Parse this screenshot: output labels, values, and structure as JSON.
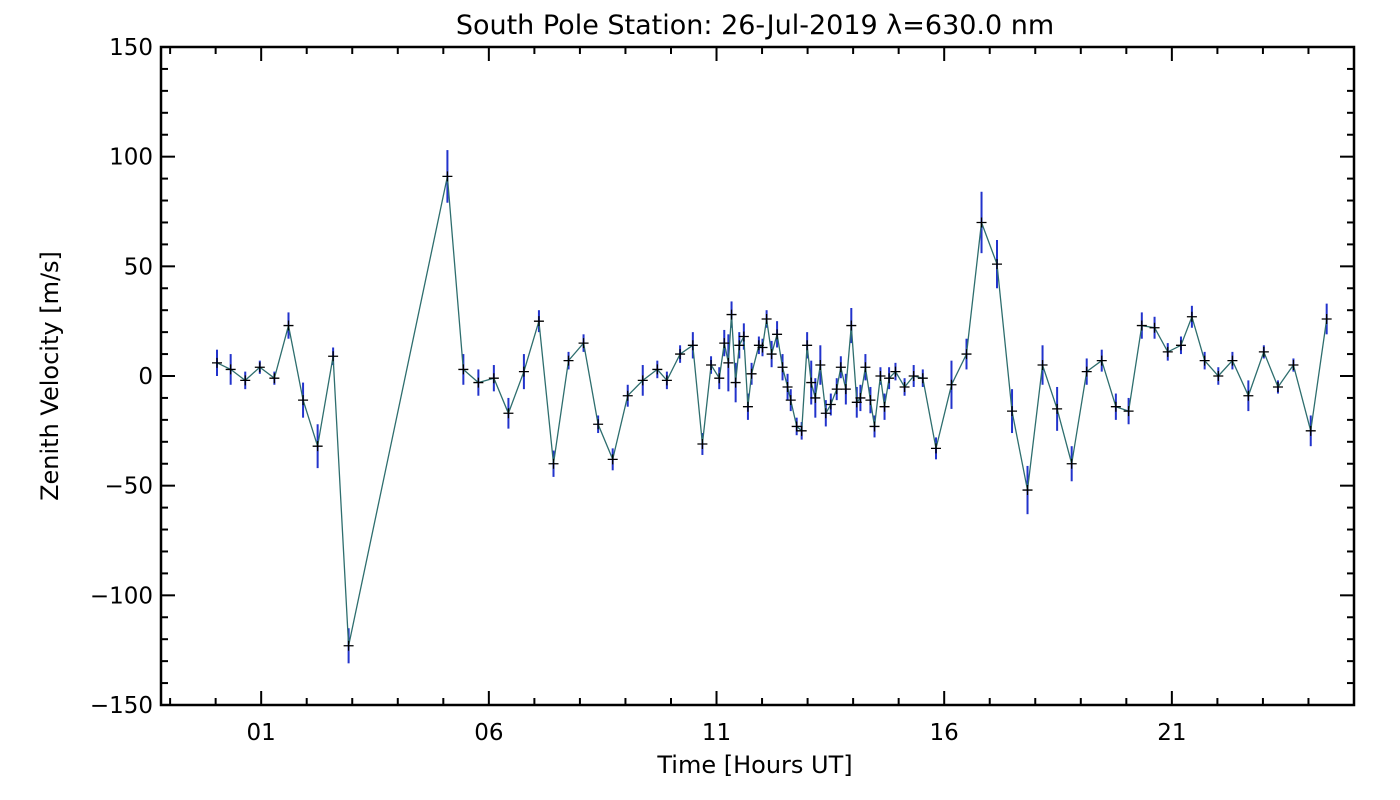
{
  "chart_data": {
    "type": "line",
    "title": "South Pole Station: 26-Jul-2019 λ=630.0 nm",
    "xlabel": "Time [Hours UT]",
    "ylabel": "Zenith Velocity [m/s]",
    "xlim": [
      -1.2,
      25.0
    ],
    "ylim": [
      -150,
      150
    ],
    "xticks": [
      {
        "value": 1,
        "label": "01"
      },
      {
        "value": 6,
        "label": "06"
      },
      {
        "value": 11,
        "label": "11"
      },
      {
        "value": 16,
        "label": "16"
      },
      {
        "value": 21,
        "label": "21"
      }
    ],
    "yticks": [
      {
        "value": -150,
        "label": "−150"
      },
      {
        "value": -100,
        "label": "−100"
      },
      {
        "value": -50,
        "label": "−50"
      },
      {
        "value": 0,
        "label": "0"
      },
      {
        "value": 50,
        "label": "50"
      },
      {
        "value": 100,
        "label": "100"
      },
      {
        "value": 150,
        "label": "150"
      }
    ],
    "grid": false,
    "colors": {
      "line": "#2e6e6e",
      "errorbar": "#2233cc",
      "marker": "#000000",
      "axis": "#000000"
    },
    "series": [
      {
        "name": "zenith velocity",
        "points": [
          {
            "x": 0.03,
            "y": 6,
            "err": 6
          },
          {
            "x": 0.33,
            "y": 3,
            "err": 7
          },
          {
            "x": 0.65,
            "y": -2,
            "err": 4
          },
          {
            "x": 0.97,
            "y": 4,
            "err": 3
          },
          {
            "x": 1.29,
            "y": -1,
            "err": 3
          },
          {
            "x": 1.6,
            "y": 23,
            "err": 6
          },
          {
            "x": 1.92,
            "y": -11,
            "err": 8
          },
          {
            "x": 2.24,
            "y": -32,
            "err": 10
          },
          {
            "x": 2.58,
            "y": 9,
            "err": 4
          },
          {
            "x": 2.92,
            "y": -123,
            "err": 8
          },
          {
            "x": 5.09,
            "y": 91,
            "err": 12
          },
          {
            "x": 5.44,
            "y": 3,
            "err": 7
          },
          {
            "x": 5.77,
            "y": -3,
            "err": 6
          },
          {
            "x": 6.11,
            "y": -1,
            "err": 6
          },
          {
            "x": 6.43,
            "y": -17,
            "err": 7
          },
          {
            "x": 6.77,
            "y": 2,
            "err": 8
          },
          {
            "x": 7.1,
            "y": 25,
            "err": 5
          },
          {
            "x": 7.42,
            "y": -40,
            "err": 6
          },
          {
            "x": 7.75,
            "y": 7,
            "err": 4
          },
          {
            "x": 8.08,
            "y": 15,
            "err": 4
          },
          {
            "x": 8.4,
            "y": -22,
            "err": 4
          },
          {
            "x": 8.72,
            "y": -38,
            "err": 5
          },
          {
            "x": 9.05,
            "y": -9,
            "err": 5
          },
          {
            "x": 9.38,
            "y": -2,
            "err": 7
          },
          {
            "x": 9.7,
            "y": 3,
            "err": 4
          },
          {
            "x": 9.91,
            "y": -2,
            "err": 4
          },
          {
            "x": 10.2,
            "y": 10,
            "err": 4
          },
          {
            "x": 10.48,
            "y": 14,
            "err": 6
          },
          {
            "x": 10.69,
            "y": -31,
            "err": 5
          },
          {
            "x": 10.88,
            "y": 5,
            "err": 4
          },
          {
            "x": 11.06,
            "y": -1,
            "err": 5
          },
          {
            "x": 11.17,
            "y": 15,
            "err": 6
          },
          {
            "x": 11.26,
            "y": 6,
            "err": 13
          },
          {
            "x": 11.33,
            "y": 28,
            "err": 6
          },
          {
            "x": 11.42,
            "y": -3,
            "err": 9
          },
          {
            "x": 11.5,
            "y": 14,
            "err": 6
          },
          {
            "x": 11.6,
            "y": 18,
            "err": 6
          },
          {
            "x": 11.69,
            "y": -14,
            "err": 6
          },
          {
            "x": 11.77,
            "y": 1,
            "err": 5
          },
          {
            "x": 11.93,
            "y": 14,
            "err": 4
          },
          {
            "x": 12.01,
            "y": 13,
            "err": 4
          },
          {
            "x": 12.1,
            "y": 26,
            "err": 4
          },
          {
            "x": 12.21,
            "y": 10,
            "err": 6
          },
          {
            "x": 12.33,
            "y": 19,
            "err": 6
          },
          {
            "x": 12.45,
            "y": 4,
            "err": 6
          },
          {
            "x": 12.56,
            "y": -5,
            "err": 6
          },
          {
            "x": 12.63,
            "y": -11,
            "err": 5
          },
          {
            "x": 12.76,
            "y": -23,
            "err": 4
          },
          {
            "x": 12.87,
            "y": -25,
            "err": 4
          },
          {
            "x": 12.99,
            "y": 14,
            "err": 6
          },
          {
            "x": 13.08,
            "y": -3,
            "err": 10
          },
          {
            "x": 13.17,
            "y": -10,
            "err": 9
          },
          {
            "x": 13.28,
            "y": 5,
            "err": 9
          },
          {
            "x": 13.4,
            "y": -17,
            "err": 6
          },
          {
            "x": 13.51,
            "y": -13,
            "err": 5
          },
          {
            "x": 13.64,
            "y": -6,
            "err": 5
          },
          {
            "x": 13.73,
            "y": 4,
            "err": 5
          },
          {
            "x": 13.84,
            "y": -6,
            "err": 7
          },
          {
            "x": 13.96,
            "y": 23,
            "err": 8
          },
          {
            "x": 14.08,
            "y": -12,
            "err": 7
          },
          {
            "x": 14.16,
            "y": -10,
            "err": 6
          },
          {
            "x": 14.27,
            "y": 4,
            "err": 6
          },
          {
            "x": 14.38,
            "y": -11,
            "err": 6
          },
          {
            "x": 14.47,
            "y": -23,
            "err": 5
          },
          {
            "x": 14.6,
            "y": 0,
            "err": 4
          },
          {
            "x": 14.69,
            "y": -14,
            "err": 6
          },
          {
            "x": 14.79,
            "y": -1,
            "err": 5
          },
          {
            "x": 14.93,
            "y": 2,
            "err": 4
          },
          {
            "x": 15.13,
            "y": -5,
            "err": 4
          },
          {
            "x": 15.33,
            "y": 0,
            "err": 5
          },
          {
            "x": 15.53,
            "y": -1,
            "err": 4
          },
          {
            "x": 15.82,
            "y": -33,
            "err": 5
          },
          {
            "x": 16.16,
            "y": -4,
            "err": 11
          },
          {
            "x": 16.49,
            "y": 10,
            "err": 7
          },
          {
            "x": 16.82,
            "y": 70,
            "err": 14
          },
          {
            "x": 17.16,
            "y": 51,
            "err": 11
          },
          {
            "x": 17.49,
            "y": -16,
            "err": 10
          },
          {
            "x": 17.83,
            "y": -52,
            "err": 11
          },
          {
            "x": 18.16,
            "y": 5,
            "err": 9
          },
          {
            "x": 18.48,
            "y": -15,
            "err": 10
          },
          {
            "x": 18.8,
            "y": -40,
            "err": 8
          },
          {
            "x": 19.13,
            "y": 2,
            "err": 6
          },
          {
            "x": 19.46,
            "y": 7,
            "err": 5
          },
          {
            "x": 19.77,
            "y": -14,
            "err": 6
          },
          {
            "x": 20.05,
            "y": -16,
            "err": 6
          },
          {
            "x": 20.34,
            "y": 23,
            "err": 6
          },
          {
            "x": 20.62,
            "y": 22,
            "err": 5
          },
          {
            "x": 20.91,
            "y": 11,
            "err": 4
          },
          {
            "x": 21.2,
            "y": 14,
            "err": 4
          },
          {
            "x": 21.44,
            "y": 27,
            "err": 5
          },
          {
            "x": 21.72,
            "y": 7,
            "err": 4
          },
          {
            "x": 22.02,
            "y": 0,
            "err": 4
          },
          {
            "x": 22.33,
            "y": 7,
            "err": 4
          },
          {
            "x": 22.68,
            "y": -9,
            "err": 7
          },
          {
            "x": 23.02,
            "y": 11,
            "err": 3
          },
          {
            "x": 23.33,
            "y": -5,
            "err": 3
          },
          {
            "x": 23.67,
            "y": 5,
            "err": 3
          },
          {
            "x": 24.05,
            "y": -25,
            "err": 7
          },
          {
            "x": 24.4,
            "y": 26,
            "err": 7
          }
        ]
      }
    ]
  }
}
